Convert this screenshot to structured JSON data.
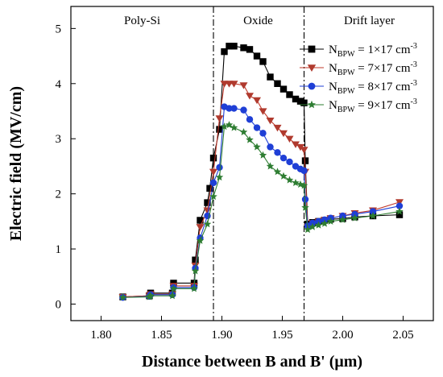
{
  "chart_data": {
    "type": "line",
    "xlabel": "Distance between B and B' (μm)",
    "ylabel": "Electric field (MV/cm)",
    "xlim": [
      1.775,
      2.075
    ],
    "ylim": [
      -0.3,
      5.4
    ],
    "xticks": [
      1.8,
      1.85,
      1.9,
      1.95,
      2.0,
      2.05
    ],
    "xtick_labels": [
      "1.80",
      "1.85",
      "1.90",
      "1.95",
      "2.00",
      "2.05"
    ],
    "yticks": [
      0,
      1,
      2,
      3,
      4,
      5
    ],
    "ytick_labels": [
      "0",
      "1",
      "2",
      "3",
      "4",
      "5"
    ],
    "boundaries": [
      1.893,
      1.968
    ],
    "regions": [
      {
        "label": "Poly-Si",
        "x": 1.834
      },
      {
        "label": "Oxide",
        "x": 1.93
      },
      {
        "label": "Drift layer",
        "x": 2.022
      }
    ],
    "legend_position": "top-right",
    "series": [
      {
        "name": "N_BPW = 1×17 cm^-3",
        "legend_main": "N",
        "legend_sub": "BPW",
        "legend_rest": " = 1×17 cm",
        "legend_sup": "-3",
        "color": "#000000",
        "fill": "#000000",
        "marker": "square",
        "x": [
          1.818,
          1.84,
          1.841,
          1.859,
          1.86,
          1.877,
          1.878,
          1.882,
          1.888,
          1.89,
          1.893,
          1.898,
          1.902,
          1.906,
          1.91,
          1.918,
          1.923,
          1.929,
          1.934,
          1.94,
          1.946,
          1.951,
          1.956,
          1.961,
          1.965,
          1.968,
          1.969,
          1.971,
          1.975,
          1.98,
          1.985,
          1.99,
          2.0,
          2.01,
          2.025,
          2.047
        ],
        "y": [
          0.13,
          0.15,
          0.2,
          0.2,
          0.38,
          0.38,
          0.8,
          1.52,
          1.84,
          2.1,
          2.65,
          3.17,
          4.58,
          4.68,
          4.68,
          4.65,
          4.62,
          4.5,
          4.4,
          4.12,
          4.0,
          3.9,
          3.8,
          3.72,
          3.68,
          3.65,
          2.6,
          1.45,
          1.48,
          1.5,
          1.52,
          1.54,
          1.55,
          1.58,
          1.6,
          1.62
        ]
      },
      {
        "name": "N_BPW = 7×17 cm^-3",
        "legend_main": "N",
        "legend_sub": "BPW",
        "legend_rest": " = 7×17 cm",
        "legend_sup": "-3",
        "color": "#c0392b",
        "fill": "#b03a2e",
        "marker": "triangle-down",
        "x": [
          1.818,
          1.84,
          1.841,
          1.859,
          1.86,
          1.877,
          1.878,
          1.882,
          1.888,
          1.893,
          1.898,
          1.902,
          1.906,
          1.91,
          1.918,
          1.923,
          1.929,
          1.934,
          1.94,
          1.946,
          1.951,
          1.956,
          1.961,
          1.965,
          1.968,
          1.969,
          1.971,
          1.975,
          1.98,
          1.985,
          1.99,
          2.0,
          2.01,
          2.025,
          2.047
        ],
        "y": [
          0.13,
          0.15,
          0.18,
          0.18,
          0.33,
          0.33,
          0.7,
          1.4,
          1.7,
          2.4,
          3.37,
          4.0,
          4.0,
          4.0,
          3.97,
          3.78,
          3.7,
          3.5,
          3.33,
          3.2,
          3.1,
          3.0,
          2.9,
          2.85,
          2.8,
          2.4,
          1.4,
          1.47,
          1.5,
          1.53,
          1.56,
          1.6,
          1.65,
          1.7,
          1.85
        ]
      },
      {
        "name": "N_BPW = 8×17 cm^-3",
        "legend_main": "N",
        "legend_sub": "BPW",
        "legend_rest": " = 8×17 cm",
        "legend_sup": "-3",
        "color": "#1f3fd6",
        "fill": "#1f3fd6",
        "marker": "circle",
        "x": [
          1.818,
          1.84,
          1.841,
          1.859,
          1.86,
          1.877,
          1.878,
          1.882,
          1.888,
          1.893,
          1.898,
          1.902,
          1.906,
          1.91,
          1.918,
          1.923,
          1.929,
          1.934,
          1.94,
          1.946,
          1.951,
          1.956,
          1.961,
          1.965,
          1.968,
          1.969,
          1.971,
          1.975,
          1.98,
          1.985,
          1.99,
          2.0,
          2.01,
          2.025,
          2.047
        ],
        "y": [
          0.12,
          0.14,
          0.17,
          0.17,
          0.3,
          0.3,
          0.65,
          1.2,
          1.6,
          2.2,
          2.48,
          3.58,
          3.55,
          3.55,
          3.52,
          3.35,
          3.2,
          3.1,
          2.85,
          2.75,
          2.65,
          2.58,
          2.5,
          2.45,
          2.42,
          1.9,
          1.42,
          1.47,
          1.5,
          1.53,
          1.56,
          1.6,
          1.63,
          1.68,
          1.78
        ]
      },
      {
        "name": "N_BPW = 9×17 cm^-3",
        "legend_main": "N",
        "legend_sub": "BPW",
        "legend_rest": " = 9×17 cm",
        "legend_sup": "-3",
        "color": "#2e7d32",
        "fill": "#2e7d32",
        "marker": "star",
        "x": [
          1.818,
          1.84,
          1.841,
          1.859,
          1.86,
          1.877,
          1.878,
          1.882,
          1.888,
          1.893,
          1.898,
          1.902,
          1.906,
          1.91,
          1.918,
          1.923,
          1.929,
          1.934,
          1.94,
          1.946,
          1.951,
          1.956,
          1.961,
          1.965,
          1.968,
          1.969,
          1.971,
          1.975,
          1.98,
          1.985,
          1.99,
          2.0,
          2.01,
          2.025,
          2.047
        ],
        "y": [
          0.12,
          0.13,
          0.15,
          0.15,
          0.28,
          0.28,
          0.6,
          1.15,
          1.45,
          1.95,
          2.3,
          3.22,
          3.25,
          3.2,
          3.12,
          2.98,
          2.85,
          2.7,
          2.5,
          2.4,
          2.32,
          2.25,
          2.2,
          2.17,
          2.15,
          1.75,
          1.35,
          1.4,
          1.43,
          1.46,
          1.5,
          1.53,
          1.56,
          1.6,
          1.68
        ]
      }
    ]
  }
}
